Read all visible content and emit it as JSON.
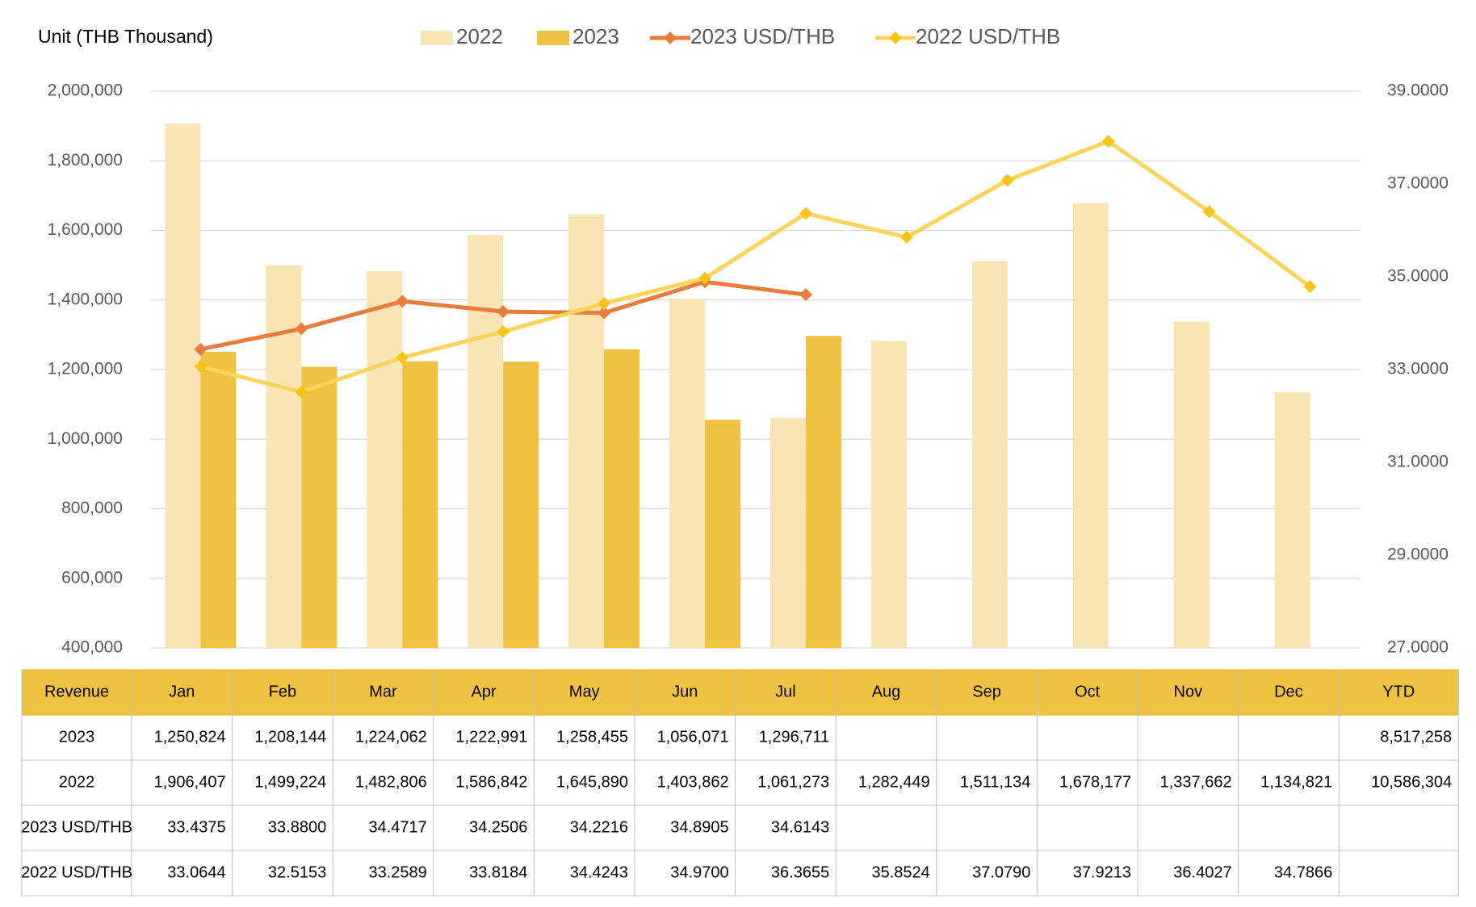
{
  "chart_data": {
    "type": "bar_line",
    "title": "Unit (THB  Thousand)",
    "categories": [
      "Jan",
      "Feb",
      "Mar",
      "Apr",
      "May",
      "Jun",
      "Jul",
      "Aug",
      "Sep",
      "Oct",
      "Nov",
      "Dec"
    ],
    "series": [
      {
        "name": "2022",
        "type": "bar",
        "color": "#f9e5b3",
        "values": [
          1906407,
          1499224,
          1482806,
          1586842,
          1645890,
          1403862,
          1061273,
          1282449,
          1511134,
          1678177,
          1337662,
          1134821
        ],
        "value_labels": [
          "1,906,407",
          "1,499,224",
          "1,482,806",
          "1,586,842",
          "1,645,890",
          "1,403,862",
          "1,061,273",
          "1,282,449",
          "1,511,134",
          "1,678,177",
          "1,337,662",
          "1,134,821"
        ]
      },
      {
        "name": "2023",
        "type": "bar",
        "color": "#f0c241",
        "values": [
          1250824,
          1208144,
          1224062,
          1222991,
          1258455,
          1056071,
          1296711,
          null,
          null,
          null,
          null,
          null
        ],
        "value_labels": [
          "1,250,824",
          "1,208,144",
          "1,224,062",
          "1,222,991",
          "1,258,455",
          "1,056,071",
          "1,296,711",
          null,
          null,
          null,
          null,
          null
        ]
      },
      {
        "name": "2023 USD/THB",
        "type": "line",
        "axis": "y2",
        "color": "#e97c3a",
        "values": [
          33.4375,
          33.88,
          34.4717,
          34.2506,
          34.2216,
          34.8905,
          34.6143,
          null,
          null,
          null,
          null,
          null
        ],
        "value_labels": [
          "33.4375",
          "33.8800",
          "34.4717",
          "34.2506",
          "34.2216",
          "34.8905",
          "34.6143",
          null,
          null,
          null,
          null,
          null
        ]
      },
      {
        "name": "2022 USD/THB",
        "type": "line",
        "axis": "y2",
        "color": "#fcd45c",
        "marker_color": "#f6c318",
        "values": [
          33.0644,
          32.5153,
          33.2589,
          33.8184,
          34.4243,
          34.97,
          36.3655,
          35.8524,
          37.079,
          37.9213,
          36.4027,
          34.7866
        ],
        "value_labels": [
          "33.0644",
          "32.5153",
          "33.2589",
          "33.8184",
          "34.4243",
          "34.9700",
          "36.3655",
          "35.8524",
          "37.0790",
          "37.9213",
          "36.4027",
          "34.7866"
        ]
      }
    ],
    "ylim": [
      400000,
      2000000
    ],
    "yticks": [
      {
        "value": 400000,
        "label": "400,000"
      },
      {
        "value": 600000,
        "label": "600,000"
      },
      {
        "value": 800000,
        "label": "800,000"
      },
      {
        "value": 1000000,
        "label": "1,000,000"
      },
      {
        "value": 1200000,
        "label": "1,200,000"
      },
      {
        "value": 1400000,
        "label": "1,400,000"
      },
      {
        "value": 1600000,
        "label": "1,600,000"
      },
      {
        "value": 1800000,
        "label": "1,800,000"
      },
      {
        "value": 2000000,
        "label": "2,000,000"
      }
    ],
    "y2lim": [
      27,
      39
    ],
    "y2ticks": [
      {
        "value": 27,
        "label": "27.0000"
      },
      {
        "value": 29,
        "label": "29.0000"
      },
      {
        "value": 31,
        "label": "31.0000"
      },
      {
        "value": 33,
        "label": "33.0000"
      },
      {
        "value": 35,
        "label": "35.0000"
      },
      {
        "value": 37,
        "label": "37.0000"
      },
      {
        "value": 39,
        "label": "39.0000"
      }
    ],
    "grid": true,
    "legend": "top"
  },
  "table": {
    "header": "Revenue",
    "total_label": "YTD",
    "totals": [
      "8,517,258",
      "10,586,304"
    ],
    "header_color": "#f0c241"
  }
}
